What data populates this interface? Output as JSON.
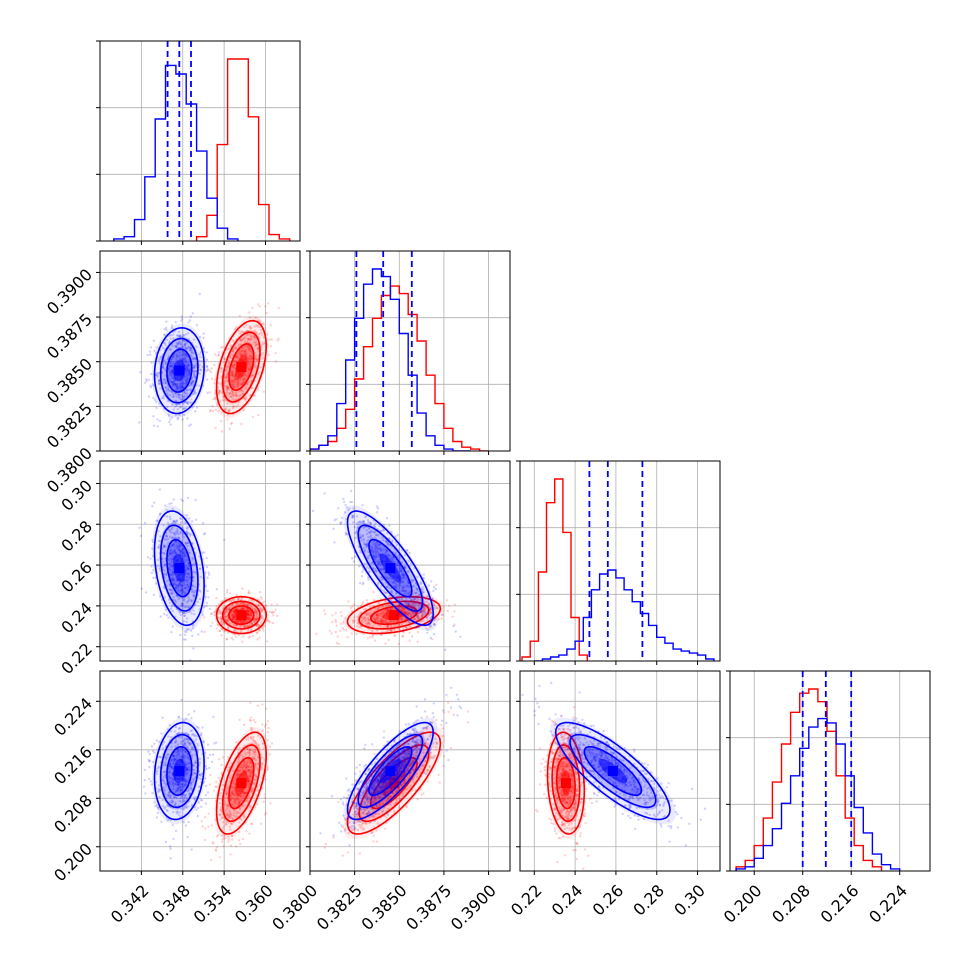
{
  "chart_data": {
    "type": "corner",
    "parameters": 4,
    "colors": {
      "red": "#ff0000",
      "blue": "#0000ff"
    },
    "grid": true,
    "axes": [
      {
        "range": [
          0.336,
          0.365
        ],
        "ticks": [
          0.342,
          0.348,
          0.354,
          0.36
        ],
        "tick_labels": [
          "0.342",
          "0.348",
          "0.354",
          "0.360"
        ]
      },
      {
        "range": [
          0.38,
          0.3912
        ],
        "ticks": [
          0.38,
          0.3825,
          0.385,
          0.3875,
          0.39
        ],
        "tick_labels": [
          "0.3800",
          "0.3825",
          "0.3850",
          "0.3875",
          "0.3900"
        ]
      },
      {
        "range": [
          0.213,
          0.311
        ],
        "ticks": [
          0.22,
          0.24,
          0.26,
          0.28,
          0.3
        ],
        "tick_labels": [
          "0.22",
          "0.24",
          "0.26",
          "0.28",
          "0.30"
        ]
      },
      {
        "range": [
          0.196,
          0.229
        ],
        "ticks": [
          0.2,
          0.208,
          0.216,
          0.224
        ],
        "tick_labels": [
          "0.200",
          "0.208",
          "0.216",
          "0.224"
        ]
      }
    ],
    "series": [
      {
        "color": "#ff0000",
        "means": [
          0.3565,
          0.3847,
          0.2355,
          0.2105
        ],
        "sigmas": [
          0.0018,
          0.0013,
          0.0045,
          0.0042
        ],
        "correlations": [
          [
            1,
            0.45,
            0.0,
            0.55
          ],
          [
            0.45,
            1,
            0.35,
            0.78
          ],
          [
            0.0,
            0.35,
            1,
            -0.15
          ],
          [
            0.55,
            0.78,
            -0.15,
            1
          ]
        ],
        "histograms": [
          {
            "edges": [
              0.35,
              0.3515,
              0.353,
              0.3545,
              0.356,
              0.3575,
              0.359,
              0.3605,
              0.362,
              0.3635
            ],
            "counts": [
              2,
              12,
              45,
              85,
              85,
              58,
              17,
              3,
              1
            ]
          },
          {
            "edges": [
              0.38,
              0.3805,
              0.381,
              0.3815,
              0.382,
              0.3825,
              0.383,
              0.3835,
              0.384,
              0.3845,
              0.385,
              0.3855,
              0.386,
              0.3865,
              0.387,
              0.3875,
              0.388,
              0.3885,
              0.389,
              0.3895,
              0.39
            ],
            "counts": [
              1,
              3,
              5,
              12,
              22,
              38,
              55,
              70,
              82,
              87,
              83,
              72,
              58,
              40,
              25,
              12,
              5,
              2,
              1,
              0
            ]
          },
          {
            "edges": [
              0.214,
              0.218,
              0.222,
              0.226,
              0.23,
              0.234,
              0.238,
              0.242,
              0.246
            ],
            "counts": [
              2,
              10,
              45,
              80,
              92,
              65,
              22,
              3
            ]
          },
          {
            "edges": [
              0.197,
              0.1985,
              0.2,
              0.2015,
              0.203,
              0.2045,
              0.206,
              0.2075,
              0.209,
              0.2105,
              0.212,
              0.2135,
              0.215,
              0.2165,
              0.218,
              0.2195,
              0.221
            ],
            "counts": [
              2,
              5,
              12,
              25,
              42,
              60,
              75,
              84,
              86,
              80,
              66,
              45,
              25,
              12,
              5,
              2
            ]
          }
        ]
      },
      {
        "color": "#0000ff",
        "means": [
          0.3475,
          0.3845,
          0.2585,
          0.2125
        ],
        "sigmas": [
          0.0018,
          0.0012,
          0.014,
          0.004
        ],
        "correlations": [
          [
            1,
            0.1,
            -0.3,
            0.15
          ],
          [
            0.1,
            1,
            -0.8,
            0.8
          ],
          [
            -0.3,
            -0.8,
            1,
            -0.8
          ],
          [
            0.15,
            0.8,
            -0.8,
            1
          ]
        ],
        "quantile_lines": [
          [
            0.3458,
            0.3475,
            0.3492
          ],
          [
            0.3826,
            0.3841,
            0.3857
          ],
          [
            0.247,
            0.256,
            0.273
          ],
          [
            0.208,
            0.2118,
            0.216
          ]
        ],
        "histograms": [
          {
            "edges": [
              0.338,
              0.3395,
              0.341,
              0.3425,
              0.344,
              0.3455,
              0.347,
              0.3485,
              0.35,
              0.3515,
              0.353,
              0.3545,
              0.356
            ],
            "counts": [
              1,
              2,
              10,
              30,
              57,
              82,
              78,
              64,
              42,
              20,
              6,
              1
            ]
          },
          {
            "edges": [
              0.38,
              0.3805,
              0.381,
              0.3815,
              0.382,
              0.3825,
              0.383,
              0.3835,
              0.384,
              0.3845,
              0.385,
              0.3855,
              0.386,
              0.3865,
              0.387,
              0.3875,
              0.388,
              0.3885,
              0.389
            ],
            "counts": [
              1,
              3,
              8,
              25,
              48,
              70,
              88,
              96,
              92,
              80,
              62,
              40,
              20,
              8,
              3,
              1,
              0,
              0
            ]
          },
          {
            "edges": [
              0.22,
              0.224,
              0.228,
              0.232,
              0.236,
              0.24,
              0.244,
              0.248,
              0.252,
              0.256,
              0.26,
              0.264,
              0.268,
              0.272,
              0.276,
              0.28,
              0.284,
              0.288,
              0.292,
              0.296,
              0.3,
              0.304,
              0.308
            ],
            "counts": [
              0,
              1,
              2,
              3,
              6,
              10,
              22,
              36,
              44,
              46,
              42,
              36,
              30,
              24,
              18,
              12,
              9,
              6,
              5,
              4,
              3,
              1
            ]
          },
          {
            "edges": [
              0.197,
              0.1985,
              0.2,
              0.2015,
              0.203,
              0.2045,
              0.206,
              0.2075,
              0.209,
              0.2105,
              0.212,
              0.2135,
              0.215,
              0.2165,
              0.218,
              0.2195,
              0.221,
              0.2225,
              0.224
            ],
            "counts": [
              1,
              2,
              6,
              12,
              20,
              32,
              45,
              58,
              68,
              72,
              70,
              60,
              45,
              30,
              18,
              8,
              3,
              1
            ]
          }
        ]
      }
    ]
  }
}
